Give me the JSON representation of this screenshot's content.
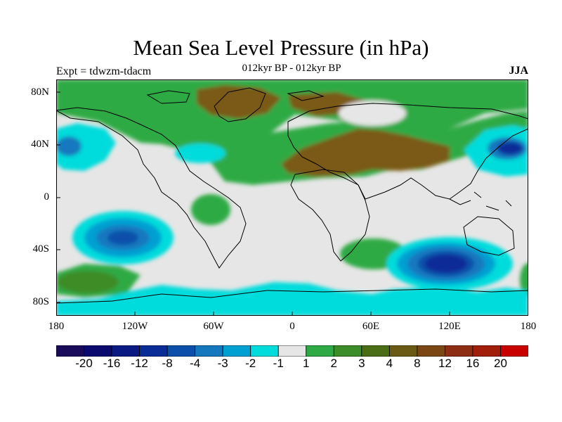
{
  "header": {
    "title": "Mean Sea Level Pressure (in hPa)",
    "subtitle": "012kyr BP - 012kyr BP",
    "experiment": "Expt = tdwzm-tdacm",
    "season": "JJA"
  },
  "axes": {
    "lat_labels": [
      "80N",
      "40N",
      "0",
      "40S",
      "80S"
    ],
    "lon_labels": [
      "180",
      "120W",
      "60W",
      "0",
      "60E",
      "120E",
      "180"
    ]
  },
  "colors": {
    "neutral": "#e6e6e6",
    "ocean_light": "#00dcdc",
    "land_green": "#2eaa44",
    "brown": "#7a5a18",
    "coast": "#000000"
  },
  "colorbar": {
    "colors": [
      "#1a0a5a",
      "#0a0a6e",
      "#0a1a82",
      "#0a2c96",
      "#0a50aa",
      "#1478be",
      "#00a0d2",
      "#00dcdc",
      "#e6e6e6",
      "#2eaa44",
      "#3c8c28",
      "#4a6e14",
      "#6a5a14",
      "#7a4614",
      "#8c2d14",
      "#a01e0a",
      "#c80000"
    ],
    "labels": [
      "-20",
      "-16",
      "-12",
      "-8",
      "-4",
      "-3",
      "-2",
      "-1",
      "1",
      "2",
      "3",
      "4",
      "8",
      "12",
      "16",
      "20"
    ]
  }
}
